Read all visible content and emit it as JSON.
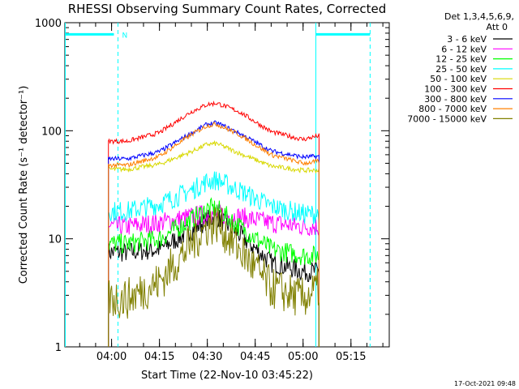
{
  "chart_data": {
    "type": "line",
    "title": "RHESSI Observing Summary Count Rates, Corrected",
    "xlabel": "Start Time (22-Nov-10 03:45:22)",
    "ylabel": "Corrected Count Rate (s⁻¹ detector⁻¹)",
    "y_scale": "log",
    "ylim": [
      1,
      1000
    ],
    "xlim": [
      "03:45:22",
      "05:27:00"
    ],
    "x_ticks": [
      "04:00",
      "04:15",
      "04:30",
      "04:45",
      "05:00",
      "05:15"
    ],
    "y_ticks": [
      "1",
      "10",
      "100",
      "1000"
    ],
    "grid": false,
    "legend_position": "outside-right",
    "detector_info": [
      "Det 1,3,4,5,6,9,",
      "Att 0"
    ],
    "footer_date": "17-Oct-2021 09:48",
    "night_marker_label": "N",
    "series": [
      {
        "name": "3 - 6 keV",
        "color": "#000000",
        "x": [
          "03:59",
          "04:05",
          "04:15",
          "04:25",
          "04:30",
          "04:33",
          "04:40",
          "04:50",
          "05:00",
          "05:05"
        ],
        "values": [
          7.5,
          7.5,
          8,
          12,
          15,
          16,
          11,
          6,
          5,
          5
        ]
      },
      {
        "name": "6 - 12 keV",
        "color": "#ff00ff",
        "x": [
          "03:59",
          "04:05",
          "04:15",
          "04:25",
          "04:30",
          "04:33",
          "04:40",
          "04:50",
          "05:00",
          "05:05"
        ],
        "values": [
          13,
          13,
          14,
          16,
          17,
          17,
          16,
          14,
          13,
          13
        ]
      },
      {
        "name": "12 - 25 keV",
        "color": "#00ff00",
        "x": [
          "03:59",
          "04:05",
          "04:15",
          "04:25",
          "04:30",
          "04:33",
          "04:40",
          "04:50",
          "05:00",
          "05:05"
        ],
        "values": [
          9,
          9,
          10,
          15,
          19,
          19,
          13,
          8,
          7,
          7
        ]
      },
      {
        "name": "25 - 50 keV",
        "color": "#00ffff",
        "x": [
          "03:59",
          "04:05",
          "04:15",
          "04:25",
          "04:30",
          "04:33",
          "04:40",
          "04:50",
          "05:00",
          "05:05"
        ],
        "values": [
          18,
          18,
          21,
          28,
          34,
          35,
          28,
          20,
          17,
          17
        ]
      },
      {
        "name": "50 - 100 keV",
        "color": "#d8d800",
        "x": [
          "03:59",
          "04:05",
          "04:15",
          "04:25",
          "04:30",
          "04:33",
          "04:40",
          "04:50",
          "05:00",
          "05:05"
        ],
        "values": [
          44,
          44,
          49,
          64,
          75,
          76,
          62,
          47,
          43,
          43
        ]
      },
      {
        "name": "100 - 300 keV",
        "color": "#ff0000",
        "x": [
          "03:59",
          "04:05",
          "04:15",
          "04:25",
          "04:30",
          "04:33",
          "04:40",
          "04:50",
          "05:00",
          "05:05"
        ],
        "values": [
          80,
          80,
          96,
          150,
          175,
          180,
          150,
          98,
          83,
          90
        ]
      },
      {
        "name": "300 - 800 keV",
        "color": "#0000ff",
        "x": [
          "03:59",
          "04:05",
          "04:15",
          "04:25",
          "04:30",
          "04:33",
          "04:40",
          "04:50",
          "05:00",
          "05:05"
        ],
        "values": [
          55,
          55,
          64,
          95,
          115,
          118,
          95,
          65,
          57,
          58
        ]
      },
      {
        "name": "800 - 7000 keV",
        "color": "#ff8000",
        "x": [
          "03:59",
          "04:05",
          "04:15",
          "04:25",
          "04:30",
          "04:33",
          "04:40",
          "04:50",
          "05:00",
          "05:05"
        ],
        "values": [
          48,
          48,
          58,
          92,
          112,
          115,
          92,
          60,
          50,
          52
        ]
      },
      {
        "name": "7000 - 15000 keV",
        "color": "#808000",
        "x": [
          "03:59",
          "04:05",
          "04:15",
          "04:25",
          "04:30",
          "04:33",
          "04:40",
          "04:50",
          "05:00",
          "05:05"
        ],
        "values": [
          2.8,
          2.8,
          4,
          9,
          13,
          14,
          8,
          3.5,
          2.8,
          3.5
        ]
      }
    ]
  }
}
